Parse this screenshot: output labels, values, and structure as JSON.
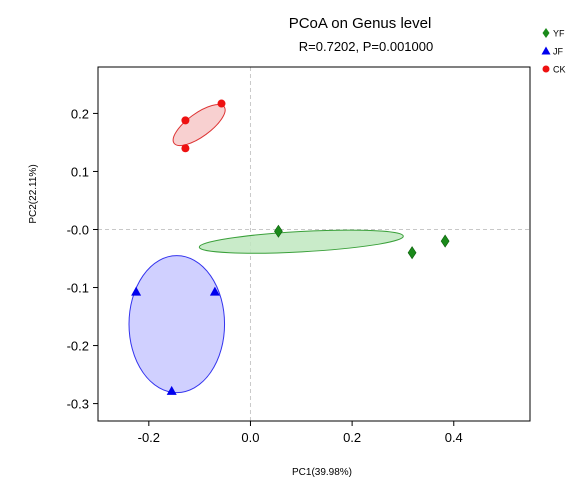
{
  "chart_data": {
    "type": "scatter",
    "title": "PCoA on Genus level",
    "subtitle": "R=0.7202, P=0.001000",
    "xlabel": "PC1(39.98%)",
    "ylabel": "PC2(22.11%)",
    "xlim": [
      -0.3,
      0.55
    ],
    "ylim": [
      -0.33,
      0.28
    ],
    "xticks": [
      -0.2,
      0.0,
      0.2,
      0.4
    ],
    "xtick_labels": [
      "-0.2",
      "0.0",
      "0.2",
      "0.4"
    ],
    "yticks": [
      0.2,
      0.1,
      0.0,
      -0.1,
      -0.2,
      -0.3
    ],
    "ytick_labels": [
      "0.2",
      "0.1",
      "-0.0",
      "-0.1",
      "-0.2",
      "-0.3"
    ],
    "reference_lines": {
      "x": 0,
      "y": 0
    },
    "legend_position": "top-right",
    "series": [
      {
        "name": "YF",
        "color": "#1a8a1a",
        "marker": "diamond",
        "points": [
          {
            "x": 0.055,
            "y": -0.003
          },
          {
            "x": 0.318,
            "y": -0.04
          },
          {
            "x": 0.383,
            "y": -0.02
          }
        ],
        "ellipse": {
          "cx": 0.1,
          "cy": -0.021,
          "rx": 0.201,
          "ry": 0.0175,
          "angle_deg": -3.1,
          "fill": "#bfe8bf",
          "stroke": "#3aa03a"
        }
      },
      {
        "name": "JF",
        "color": "#0000ee",
        "marker": "triangle",
        "points": [
          {
            "x": -0.225,
            "y": -0.107
          },
          {
            "x": -0.07,
            "y": -0.107
          },
          {
            "x": -0.155,
            "y": -0.278
          }
        ],
        "ellipse": {
          "cx": -0.145,
          "cy": -0.163,
          "rx": 0.094,
          "ry": 0.118,
          "angle_deg": 0,
          "fill": "#c8c8ff",
          "stroke": "#3333ee"
        }
      },
      {
        "name": "CK",
        "color": "#ee1111",
        "marker": "circle",
        "points": [
          {
            "x": -0.057,
            "y": 0.217
          },
          {
            "x": -0.128,
            "y": 0.188
          },
          {
            "x": -0.128,
            "y": 0.14
          }
        ],
        "ellipse": {
          "cx": -0.101,
          "cy": 0.18,
          "rx": 0.061,
          "ry": 0.02,
          "angle_deg": -36,
          "fill": "#f7c8c8",
          "stroke": "#dd3333"
        }
      }
    ]
  }
}
